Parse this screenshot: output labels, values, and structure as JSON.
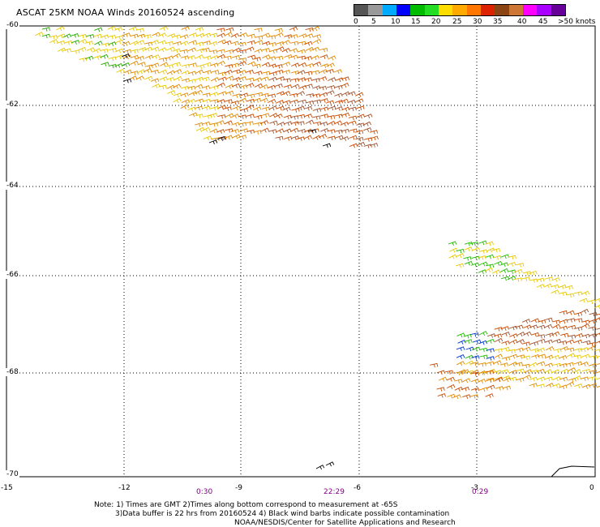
{
  "title": "ASCAT 25KM NOAA Winds 20160524 ascending",
  "legend": {
    "colors": [
      "#555555",
      "#999999",
      "#00aaff",
      "#0000ff",
      "#00bb00",
      "#22dd22",
      "#ffdd00",
      "#ffaa00",
      "#ff7700",
      "#dd2200",
      "#8b4513",
      "#cc7733",
      "#ff00ff",
      "#aa00ff",
      "#660099"
    ],
    "labels": [
      "0",
      "5",
      "10",
      "15",
      "20",
      "25",
      "30",
      "35",
      "40",
      "45",
      ">50 knots"
    ]
  },
  "map": {
    "lat_labels": [
      "-60",
      "-62",
      "-64",
      "-66",
      "-68",
      "-70"
    ],
    "lon_labels": [
      "-15",
      "-12",
      "-9",
      "-6",
      "-3",
      "0"
    ],
    "time_labels": [
      "0:30",
      "22:29",
      "0:29"
    ]
  },
  "notes": {
    "line1": "Note: 1) Times are GMT 2)Times along bottom correspond to measurement at -65S",
    "line2": "3)Data buffer is 22 hrs from 20160524 4) Black wind barbs indicate possible contamination",
    "line3": "NOAA/NESDIS/Center for Satellite Applications and Research"
  }
}
